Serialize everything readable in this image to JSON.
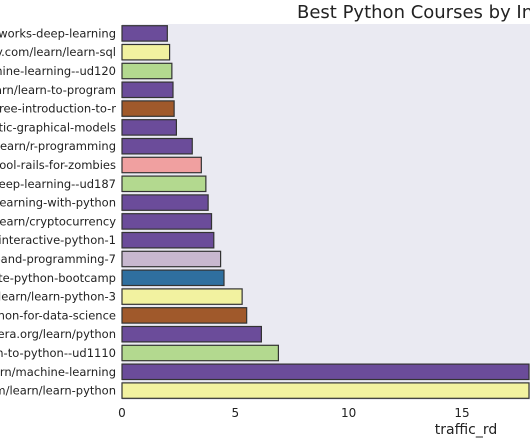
{
  "chart_data": {
    "type": "bar",
    "orientation": "horizontal",
    "title": "Best Python Courses by Inte",
    "xlabel": "traffic_rd",
    "ylabel": "",
    "xlim": [
      0,
      18
    ],
    "xticks": [
      0,
      5,
      10,
      15
    ],
    "grid": false,
    "categories": [
      "tworks-deep-learning",
      "y.com/learn/learn-sql",
      "hine-learning--ud120",
      "earn/learn-to-program",
      "free-introduction-to-r",
      "stic-graphical-models",
      "/learn/r-programming",
      "hool-rails-for-zombies",
      "deep-learning--ud187",
      "-learning-with-python",
      "learn/cryptocurrency",
      "/interactive-python-1",
      "e-and-programming-7",
      "ete-python-bootcamp",
      "/learn/learn-python-3",
      "hon-for-data-science",
      "sera.org/learn/python",
      "on-to-python--ud1110",
      "learn/machine-learning",
      "m/learn/learn-python"
    ],
    "values": [
      2.0,
      2.1,
      2.2,
      2.25,
      2.3,
      2.4,
      3.1,
      3.5,
      3.7,
      3.8,
      3.95,
      4.05,
      4.35,
      4.5,
      5.3,
      5.5,
      6.15,
      6.9,
      18.0,
      18.0
    ],
    "colors": [
      "#6b4c9a",
      "#f2f2a0",
      "#b3d98f",
      "#6b4c9a",
      "#a0592b",
      "#6b4c9a",
      "#6b4c9a",
      "#f0a0a0",
      "#b3d98f",
      "#6b4c9a",
      "#6b4c9a",
      "#6b4c9a",
      "#c8b8cf",
      "#2f6f9f",
      "#f2f2a0",
      "#a0592b",
      "#6b4c9a",
      "#b3d98f",
      "#6b4c9a",
      "#f2f2a0"
    ],
    "plot_background": "#eaeaf2"
  }
}
